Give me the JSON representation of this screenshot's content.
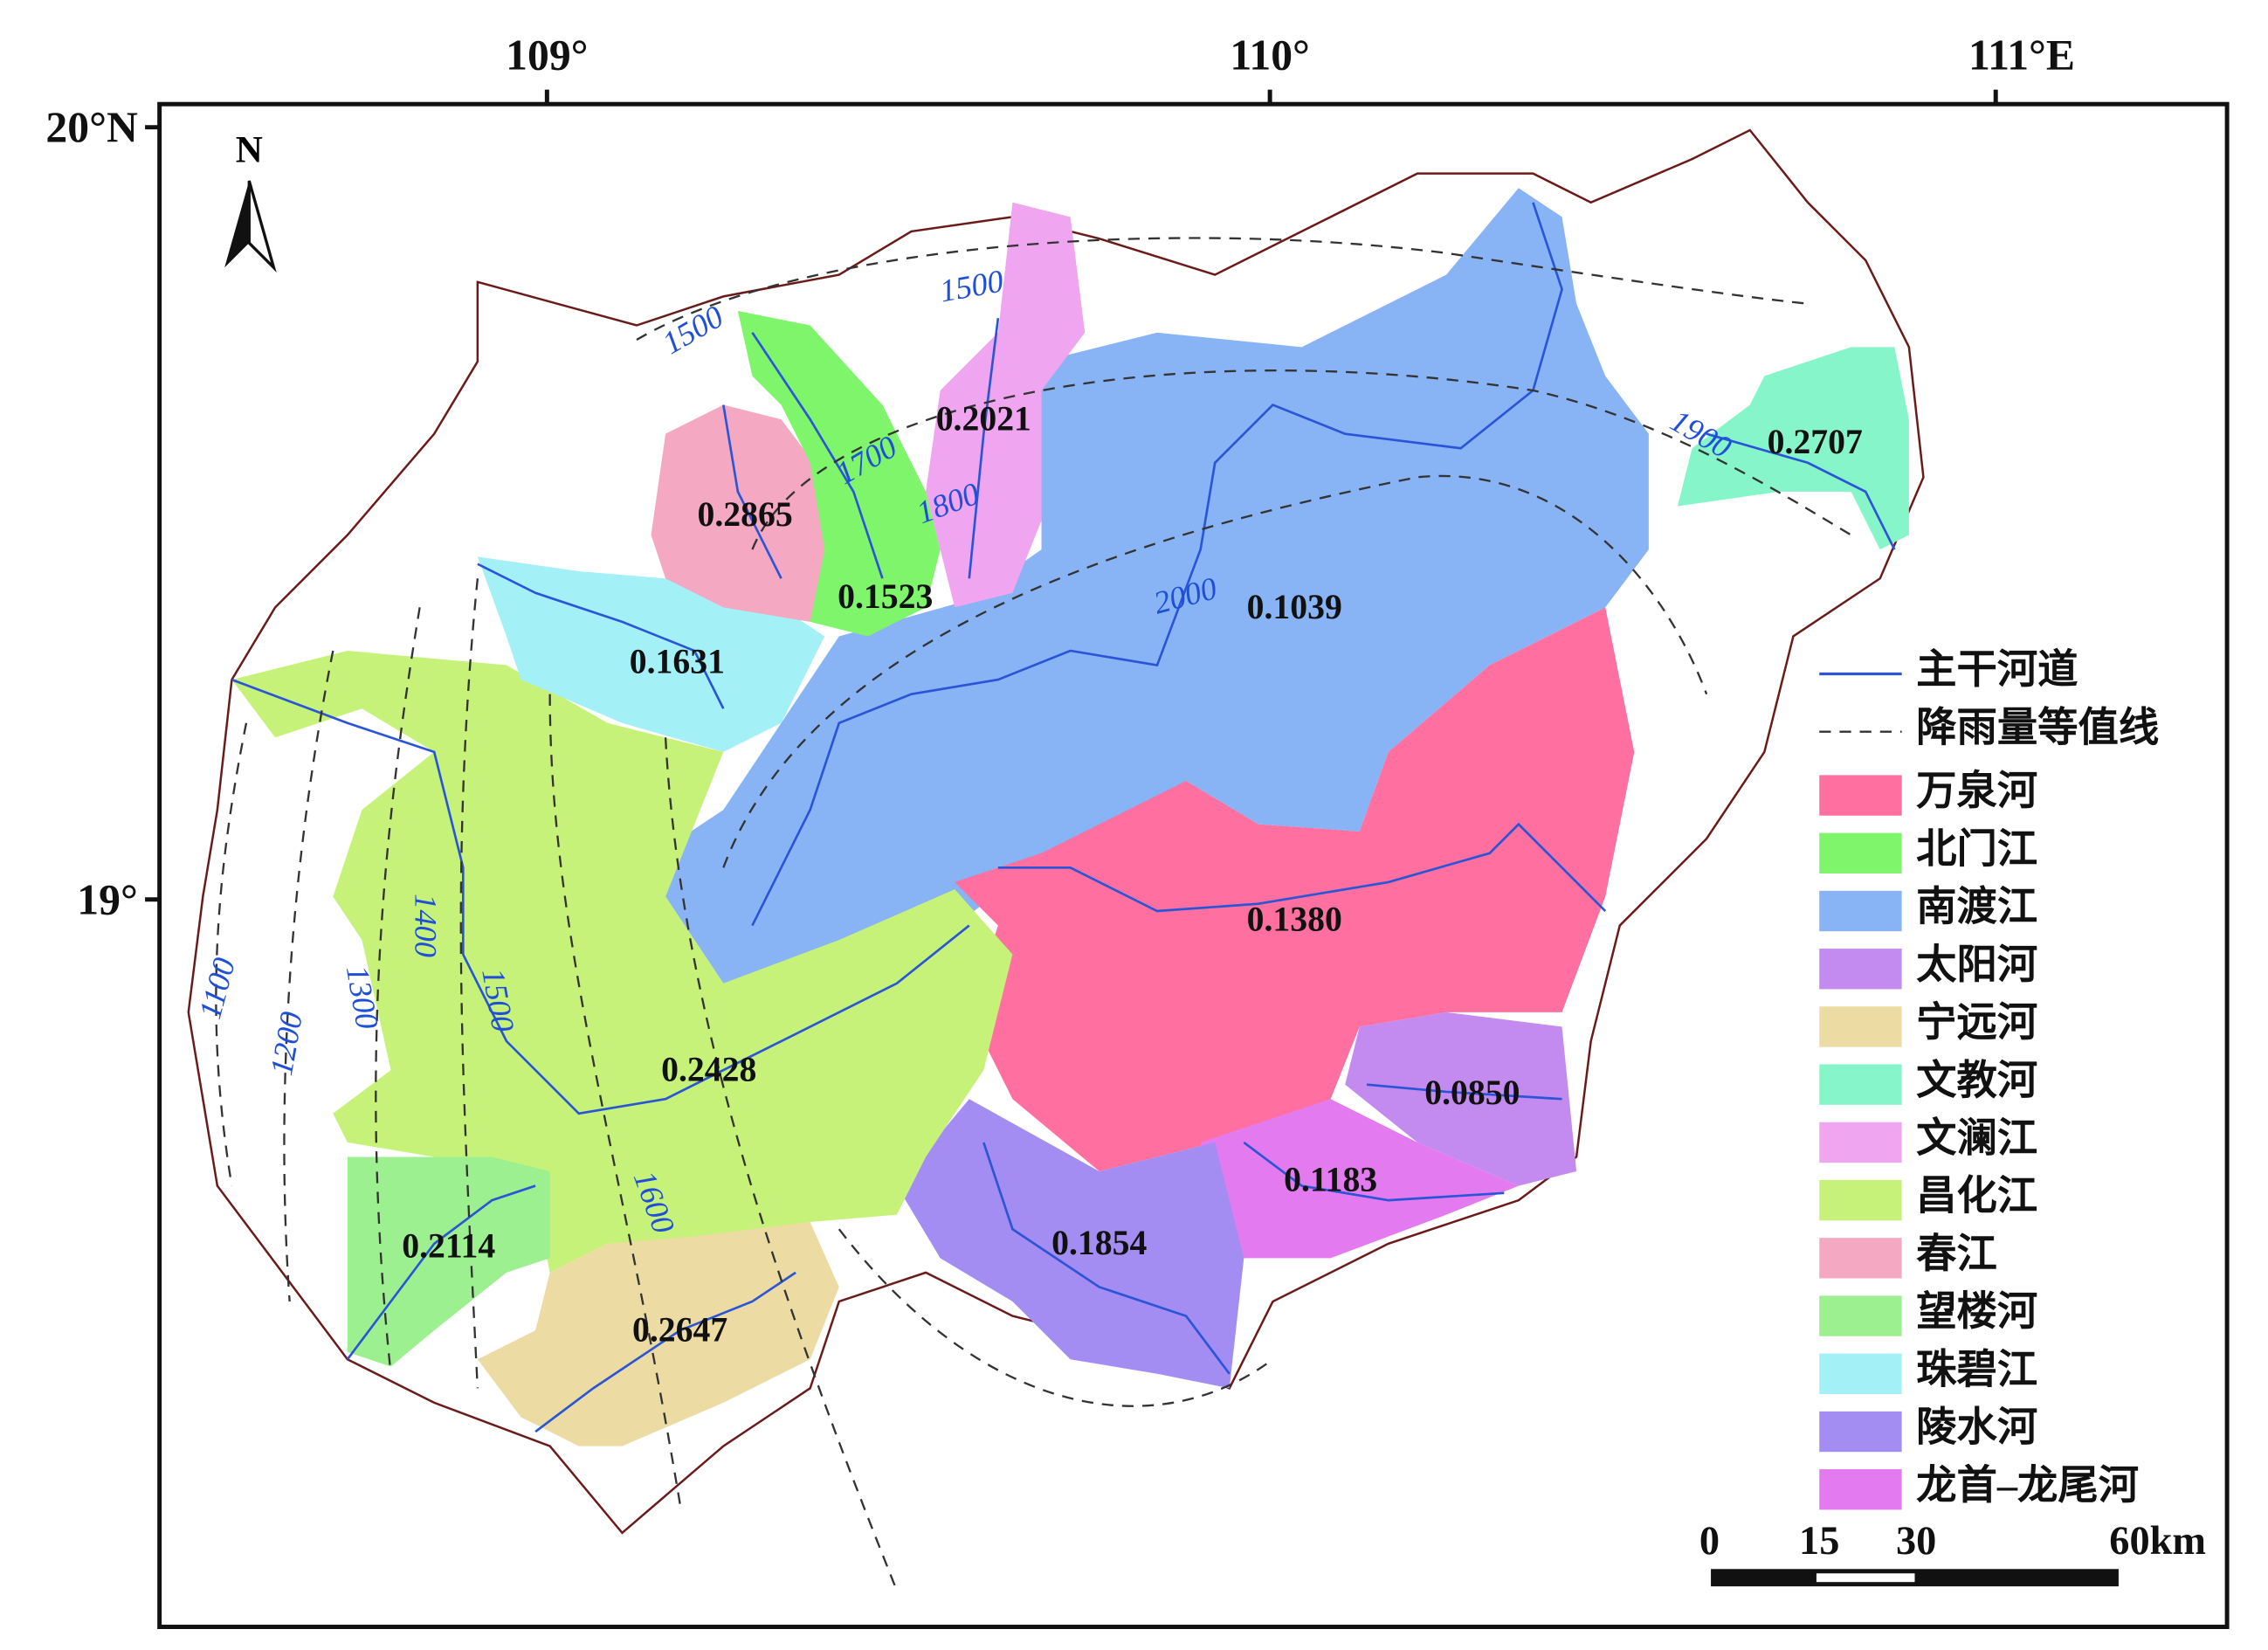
{
  "axes": {
    "top": [
      "109°",
      "110°",
      "111°E"
    ],
    "left": [
      "20°N",
      "19°"
    ]
  },
  "north": "N",
  "regions": [
    "0.2865",
    "0.2021",
    "0.2707",
    "0.1523",
    "0.1039",
    "0.1631",
    "0.1380",
    "0.2428",
    "0.0850",
    "0.1183",
    "0.1854",
    "0.2114",
    "0.2647"
  ],
  "contours": [
    1500,
    1500,
    1700,
    1800,
    1900,
    2000,
    1400,
    1500,
    1600,
    1100,
    1200,
    1300
  ],
  "legend": {
    "river": "主干河道",
    "isoline": "降雨量等值线",
    "basins": [
      {
        "name": "万泉河",
        "color": "#ff6fa0"
      },
      {
        "name": "北门江",
        "color": "#7ef56b"
      },
      {
        "name": "南渡江",
        "color": "#88b3f4"
      },
      {
        "name": "太阳河",
        "color": "#c38af0"
      },
      {
        "name": "宁远河",
        "color": "#ecdba2"
      },
      {
        "name": "文教河",
        "color": "#86f5c9"
      },
      {
        "name": "文澜江",
        "color": "#f0a5f0"
      },
      {
        "name": "昌化江",
        "color": "#c6f27a"
      },
      {
        "name": "春江",
        "color": "#f5a8c2"
      },
      {
        "name": "望楼河",
        "color": "#9df08f"
      },
      {
        "name": "珠碧江",
        "color": "#a4f0f7"
      },
      {
        "name": "陵水河",
        "color": "#a38cf2"
      },
      {
        "name": "龙首–龙尾河",
        "color": "#e47af0"
      }
    ]
  },
  "scale": [
    "0",
    "15",
    "30",
    "60km"
  ]
}
